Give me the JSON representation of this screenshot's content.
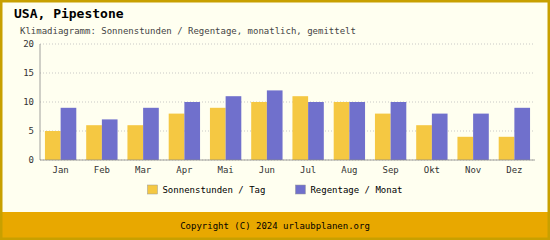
{
  "chart_data": {
    "type": "bar",
    "title": "USA,  Pipestone",
    "subtitle": "Klimadiagramm: Sonnenstunden / Regentage, monatlich, gemittelt",
    "categories": [
      "Jan",
      "Feb",
      "Mar",
      "Apr",
      "Mai",
      "Jun",
      "Jul",
      "Aug",
      "Sep",
      "Okt",
      "Nov",
      "Dez"
    ],
    "series": [
      {
        "name": "Sonnenstunden / Tag",
        "color": "#F5C842",
        "values": [
          5,
          6,
          6,
          8,
          9,
          10,
          11,
          10,
          8,
          6,
          4,
          4
        ]
      },
      {
        "name": "Regentage / Monat",
        "color": "#7070CC",
        "values": [
          9,
          7,
          9,
          10,
          11,
          12,
          10,
          10,
          10,
          8,
          8,
          9
        ]
      }
    ],
    "ylim": [
      0,
      20
    ],
    "yticks": [
      0,
      5,
      10,
      15,
      20
    ],
    "grid": true,
    "legend": "bottom",
    "annotations": [
      "Copyright (C) 2024 urlaubplanen.org"
    ]
  }
}
